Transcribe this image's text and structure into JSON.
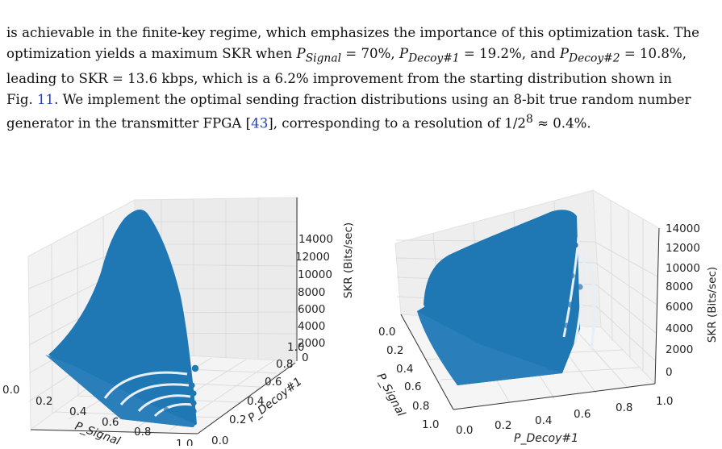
{
  "caption_fragment": "Fig. 11 ... (caption continued from previous column)",
  "paragraph": {
    "line1": "is achievable in the finite-key regime, which emphasizes the importance of this optimization task. The",
    "line2_a": "optimization yields a maximum SKR when ",
    "line2_b": "P",
    "line2_b_sub": "Signal",
    "line2_c": " = 70%, ",
    "line2_d": "P",
    "line2_d_sub": "Decoy#1",
    "line2_e": " = 19.2%, and ",
    "line2_f": "P",
    "line2_f_sub": "Decoy#2",
    "line2_g": " = 10.8%,",
    "line3": "leading to SKR = 13.6 kbps, which is a 6.2% improvement from the starting distribution shown in",
    "line4_a": "Fig. ",
    "line4_fig": "11",
    "line4_b": ". We implement the optimal sending fraction distributions using an 8-bit true random number",
    "line5_a": "generator in the transmitter FPGA [",
    "line5_cite": "43",
    "line5_b": "], corresponding to a resolution of 1/2",
    "line5_sup": "8",
    "line5_c": " ≈ 0.4%."
  },
  "chart_data": [
    {
      "type": "scatter",
      "dims": 3,
      "view": "P_Signal front-left",
      "color": "#1f77b4",
      "xlabel": "P_Signal",
      "ylabel": "P_Decoy#1",
      "zlabel": "SKR (Bits/sec)",
      "xticks": [
        "0.0",
        "0.2",
        "0.4",
        "0.6",
        "0.8",
        "1.0"
      ],
      "yticks": [
        "0.0",
        "0.2",
        "0.4",
        "0.6",
        "0.8",
        "1.0"
      ],
      "zticks": [
        "0",
        "2000",
        "4000",
        "6000",
        "8000",
        "10000",
        "12000",
        "14000"
      ],
      "xlim": [
        0,
        1
      ],
      "ylim": [
        0,
        1
      ],
      "zlim": [
        0,
        14000
      ],
      "peak": {
        "P_Signal": 0.7,
        "P_Decoy#1": 0.192,
        "SKR": 13600
      }
    },
    {
      "type": "scatter",
      "dims": 3,
      "view": "P_Decoy#1 front",
      "color": "#1f77b4",
      "xlabel": "P_Signal",
      "ylabel": "P_Decoy#1",
      "zlabel": "SKR (Bits/sec)",
      "xticks": [
        "0.0",
        "0.2",
        "0.4",
        "0.6",
        "0.8",
        "1.0"
      ],
      "yticks": [
        "0.0",
        "0.2",
        "0.4",
        "0.6",
        "0.8",
        "1.0"
      ],
      "zticks": [
        "0",
        "2000",
        "4000",
        "6000",
        "8000",
        "10000",
        "12000",
        "14000"
      ],
      "xlim": [
        0,
        1
      ],
      "ylim": [
        0,
        1
      ],
      "zlim": [
        0,
        14000
      ],
      "peak": {
        "P_Signal": 0.7,
        "P_Decoy#1": 0.192,
        "SKR": 13600
      }
    }
  ]
}
